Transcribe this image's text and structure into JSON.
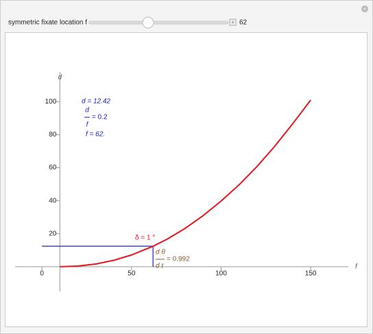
{
  "controls": {
    "label": "symmetric fixate location f",
    "value": 62
  },
  "chart_data": {
    "type": "line",
    "x_label": "f",
    "y_label": "d",
    "x": [
      10,
      20,
      30,
      40,
      50,
      62,
      70,
      80,
      90,
      100,
      110,
      120,
      130,
      140,
      150
    ],
    "series": [
      {
        "color": "#e8141c",
        "values": [
          0,
          0.38,
          1.64,
          3.87,
          7.13,
          12.42,
          16.8,
          23.3,
          31.0,
          39.8,
          49.6,
          60.7,
          73.1,
          86.7,
          101
        ]
      }
    ],
    "xlim": [
      -15,
      171
    ],
    "ylim": [
      -15,
      118
    ],
    "xticks": [
      0,
      50,
      100,
      150
    ],
    "yticks": [
      20,
      40,
      60,
      80,
      100
    ],
    "marker": {
      "x": 62,
      "y": 12.42,
      "color": "#2323a0"
    },
    "annotations": {
      "d_text": "d = 12.42",
      "ratio_num": "d",
      "ratio_den": "f",
      "ratio_text": "= 0.2",
      "f_text": "f = 62.",
      "angle_text": "δ = 1 °",
      "rate_num": "d θ",
      "rate_den": "d t",
      "rate_text": "= 0.992"
    }
  }
}
